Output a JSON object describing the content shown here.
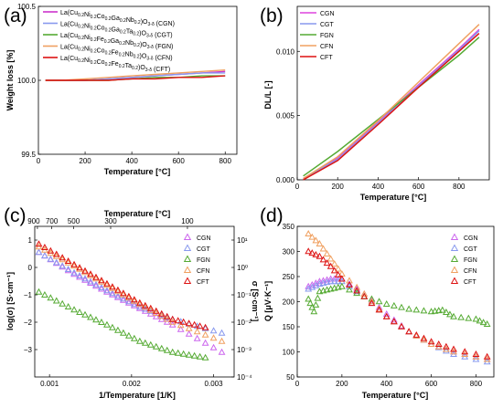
{
  "chart_data": [
    {
      "panel": "(a)",
      "type": "line",
      "xlabel": "Temperature [°C]",
      "ylabel": "Weight loss [%]",
      "xlim": [
        0,
        850
      ],
      "ylim": [
        99.5,
        100.5
      ],
      "xticks": [
        0,
        200,
        400,
        600,
        800
      ],
      "yticks": [
        99.5,
        100.0,
        100.5
      ],
      "ytick_labels": [
        "99.5",
        "100.0",
        "100.5"
      ],
      "legend_position": "top-left",
      "series": [
        {
          "name": "La(Cu0.2Ni0.2Co0.2Ga0.2Nb0.2)O3-δ (CGN)",
          "color": "#cc33cc",
          "x": [
            30,
            100,
            200,
            300,
            400,
            500,
            600,
            700,
            800
          ],
          "y": [
            100.0,
            100.0,
            100.0,
            100.01,
            100.02,
            100.03,
            100.04,
            100.05,
            100.06
          ]
        },
        {
          "name": "La(Cu0.2Ni0.2Co0.2Ga0.2Ta0.2)O3-δ (CGT)",
          "color": "#8899ee",
          "x": [
            30,
            100,
            200,
            300,
            400,
            500,
            600,
            700,
            800
          ],
          "y": [
            100.0,
            100.0,
            100.0,
            100.01,
            100.02,
            100.03,
            100.04,
            100.05,
            100.05
          ]
        },
        {
          "name": "La(Cu0.2Ni0.2Fe0.2Ga0.2Nb0.2)O3-δ (FGN)",
          "color": "#55aa33",
          "x": [
            30,
            100,
            200,
            300,
            400,
            500,
            600,
            700,
            800
          ],
          "y": [
            100.0,
            100.0,
            100.0,
            100.0,
            100.01,
            100.02,
            100.02,
            100.03,
            100.03
          ]
        },
        {
          "name": "La(Cu0.2Ni0.2Co0.2Fe0.2Nb0.2)O3-δ (CFN)",
          "color": "#f0a060",
          "x": [
            30,
            100,
            200,
            300,
            400,
            500,
            600,
            700,
            800
          ],
          "y": [
            100.0,
            100.0,
            100.01,
            100.02,
            100.03,
            100.04,
            100.05,
            100.06,
            100.07
          ]
        },
        {
          "name": "La(Cu0.2Ni0.2Co0.2Fe0.2Ta0.2)O3-δ (CFT)",
          "color": "#dd1111",
          "x": [
            30,
            100,
            200,
            300,
            400,
            500,
            600,
            700,
            800
          ],
          "y": [
            100.0,
            100.0,
            100.0,
            100.0,
            100.01,
            100.01,
            100.02,
            100.02,
            100.03
          ]
        }
      ]
    },
    {
      "panel": "(b)",
      "type": "line",
      "xlabel": "Temperature [°C]",
      "ylabel": "DL/L [-]",
      "xlim": [
        0,
        950
      ],
      "ylim": [
        0,
        0.0135
      ],
      "xticks": [
        0,
        200,
        400,
        600,
        800
      ],
      "yticks": [
        0.0,
        0.005,
        0.01
      ],
      "ytick_labels": [
        "0.000",
        "0.005",
        "0.010"
      ],
      "legend_position": "top-left",
      "series": [
        {
          "name": "CGN",
          "color": "#dd44dd",
          "x": [
            30,
            200,
            400,
            600,
            800,
            900
          ],
          "y": [
            0.0001,
            0.0017,
            0.0045,
            0.0074,
            0.0102,
            0.0117
          ]
        },
        {
          "name": "CGT",
          "color": "#8899ee",
          "x": [
            30,
            200,
            400,
            600,
            800,
            900
          ],
          "y": [
            0.0001,
            0.0016,
            0.0044,
            0.0073,
            0.0101,
            0.0116
          ]
        },
        {
          "name": "FGN",
          "color": "#55aa33",
          "x": [
            30,
            200,
            400,
            600,
            800,
            900
          ],
          "y": [
            0.0003,
            0.0022,
            0.0047,
            0.0072,
            0.0097,
            0.0111
          ]
        },
        {
          "name": "CFN",
          "color": "#f0a060",
          "x": [
            30,
            200,
            400,
            600,
            800,
            900
          ],
          "y": [
            0.0001,
            0.0018,
            0.0046,
            0.0076,
            0.0106,
            0.0121
          ]
        },
        {
          "name": "CFT",
          "color": "#dd1111",
          "x": [
            30,
            200,
            400,
            600,
            800,
            900
          ],
          "y": [
            0.0,
            0.0015,
            0.0043,
            0.0072,
            0.01,
            0.0114
          ]
        }
      ]
    },
    {
      "panel": "(c)",
      "type": "scatter",
      "xlabel": "1/Temperature [1/K]",
      "ylabel": "log(σ) [S·cm⁻¹]",
      "top_xlabel": "Temperature [°C]",
      "right_ylabel": "σ [S·cm⁻¹]",
      "xlim": [
        0.00082,
        0.00325
      ],
      "ylim": [
        -4.0,
        1.5
      ],
      "xticks": [
        0.001,
        0.002,
        0.003
      ],
      "xtick_labels": [
        "0.001",
        "0.002",
        "0.003"
      ],
      "yticks": [
        -3,
        -2,
        -1,
        0,
        1
      ],
      "top_ticks_celsius": [
        900,
        700,
        500,
        300,
        100
      ],
      "right_ticks_sigma": [
        "10⁻⁴",
        "10⁻³",
        "10⁻²",
        "10⁻¹",
        "10⁰",
        "10¹"
      ],
      "marker": "open-triangle",
      "legend_position": "top-right",
      "series": [
        {
          "name": "CGN",
          "color": "#cc66ee",
          "x": [
            0.00087,
            0.0013,
            0.0017,
            0.0021,
            0.0025,
            0.0031
          ],
          "y": [
            0.55,
            -0.25,
            -0.9,
            -1.5,
            -2.1,
            -3.1
          ]
        },
        {
          "name": "CGT",
          "color": "#8899ee",
          "x": [
            0.00087,
            0.0013,
            0.0017,
            0.0021,
            0.0025,
            0.0031
          ],
          "y": [
            0.55,
            -0.2,
            -0.85,
            -1.45,
            -1.9,
            -2.4
          ]
        },
        {
          "name": "FGN",
          "color": "#55aa33",
          "x": [
            0.00087,
            0.0013,
            0.0017,
            0.0021,
            0.0025,
            0.0029
          ],
          "y": [
            -0.9,
            -1.55,
            -2.1,
            -2.7,
            -3.1,
            -3.3
          ]
        },
        {
          "name": "CFN",
          "color": "#f0a060",
          "x": [
            0.00087,
            0.0013,
            0.0017,
            0.0021,
            0.0025,
            0.0031
          ],
          "y": [
            0.75,
            0.05,
            -0.65,
            -1.35,
            -2.0,
            -2.7
          ]
        },
        {
          "name": "CFT",
          "color": "#dd1111",
          "x": [
            0.00087,
            0.0013,
            0.0017,
            0.0021,
            0.0025,
            0.0029
          ],
          "y": [
            0.85,
            0.1,
            -0.6,
            -1.3,
            -1.9,
            -2.2
          ]
        }
      ]
    },
    {
      "panel": "(d)",
      "type": "scatter",
      "xlabel": "Temperature [°C]",
      "ylabel": "Q [μV·K⁻¹]",
      "xlim": [
        0,
        880
      ],
      "ylim": [
        50,
        350
      ],
      "xticks": [
        0,
        200,
        400,
        600,
        800
      ],
      "yticks": [
        50,
        100,
        150,
        200,
        250,
        300,
        350
      ],
      "marker": "open-triangle",
      "legend_position": "top-right",
      "series": [
        {
          "name": "CGN",
          "color": "#cc66ee",
          "x": [
            50,
            100,
            150,
            200,
            300,
            400,
            500,
            600,
            700,
            850
          ],
          "y": [
            230,
            240,
            245,
            245,
            215,
            175,
            140,
            115,
            100,
            85
          ]
        },
        {
          "name": "CGT",
          "color": "#8899ee",
          "x": [
            50,
            100,
            150,
            200,
            300,
            400,
            500,
            600,
            700,
            850
          ],
          "y": [
            225,
            235,
            240,
            240,
            210,
            170,
            140,
            115,
            95,
            80
          ]
        },
        {
          "name": "FGN",
          "color": "#55aa33",
          "x": [
            50,
            75,
            100,
            150,
            200,
            300,
            400,
            500,
            600,
            650,
            700,
            800,
            850
          ],
          "y": [
            205,
            180,
            220,
            225,
            230,
            210,
            195,
            185,
            180,
            183,
            170,
            165,
            155
          ]
        },
        {
          "name": "CFN",
          "color": "#f0a060",
          "x": [
            50,
            100,
            150,
            200,
            300,
            400,
            500,
            600,
            700,
            850
          ],
          "y": [
            335,
            315,
            285,
            255,
            215,
            170,
            140,
            115,
            100,
            85
          ]
        },
        {
          "name": "CFT",
          "color": "#dd1111",
          "x": [
            50,
            100,
            150,
            200,
            300,
            400,
            500,
            600,
            700,
            850
          ],
          "y": [
            300,
            290,
            270,
            245,
            210,
            170,
            140,
            120,
            105,
            90
          ]
        }
      ]
    }
  ]
}
